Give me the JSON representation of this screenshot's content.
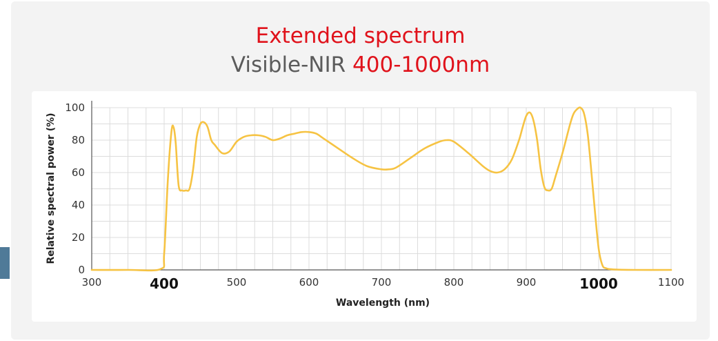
{
  "title_line1": "Extended spectrum",
  "title_line2_prefix": "Visible-NIR ",
  "title_line2_range": "400-1000nm",
  "colors": {
    "title_red": "#e0121b",
    "title_gray": "#5b5b5b",
    "curve": "#f6c343",
    "grid": "#dcdcdc",
    "panel": "#f3f3f3",
    "side_tab": "#4f7a98"
  },
  "chart_data": {
    "type": "line",
    "xlabel": "Wavelength (nm)",
    "ylabel": "Relative spectral power (%)",
    "xlim": [
      300,
      1100
    ],
    "ylim": [
      0,
      100
    ],
    "x_ticks": [
      {
        "value": 300,
        "label": "300",
        "emphasis": false
      },
      {
        "value": 400,
        "label": "400",
        "emphasis": true
      },
      {
        "value": 500,
        "label": "500",
        "emphasis": false
      },
      {
        "value": 600,
        "label": "600",
        "emphasis": false
      },
      {
        "value": 700,
        "label": "700",
        "emphasis": false
      },
      {
        "value": 800,
        "label": "800",
        "emphasis": false
      },
      {
        "value": 900,
        "label": "900",
        "emphasis": false
      },
      {
        "value": 1000,
        "label": "1000",
        "emphasis": true
      },
      {
        "value": 1100,
        "label": "1100",
        "emphasis": false
      }
    ],
    "y_ticks": [
      0,
      20,
      40,
      60,
      80,
      100
    ],
    "grid": true,
    "series": [
      {
        "color": "#f6c343",
        "x": [
          300,
          350,
          395,
          400,
          405,
          410,
          413,
          416,
          420,
          425,
          430,
          435,
          440,
          445,
          450,
          455,
          460,
          465,
          470,
          480,
          490,
          500,
          510,
          520,
          530,
          540,
          550,
          560,
          570,
          580,
          590,
          600,
          610,
          620,
          640,
          660,
          680,
          700,
          710,
          720,
          740,
          760,
          780,
          790,
          800,
          820,
          840,
          850,
          860,
          870,
          880,
          890,
          895,
          900,
          905,
          910,
          915,
          920,
          925,
          930,
          935,
          940,
          950,
          960,
          965,
          970,
          975,
          980,
          985,
          990,
          995,
          1000,
          1005,
          1010,
          1020,
          1050,
          1100
        ],
        "y": [
          0,
          0,
          0.5,
          10,
          55,
          85,
          88,
          78,
          52,
          49,
          49,
          50,
          62,
          82,
          90,
          91,
          88,
          80,
          77,
          72,
          73,
          79,
          82,
          83,
          83,
          82,
          80,
          81,
          83,
          84,
          85,
          85,
          84,
          81,
          75,
          69,
          64,
          62,
          62,
          63,
          69,
          75,
          79,
          80,
          79,
          72,
          64,
          61,
          60,
          62,
          68,
          80,
          88,
          95,
          97,
          92,
          80,
          62,
          51,
          49,
          50,
          57,
          72,
          89,
          96,
          99,
          100,
          96,
          83,
          60,
          35,
          13,
          3,
          1,
          0.3,
          0,
          0
        ]
      }
    ]
  }
}
